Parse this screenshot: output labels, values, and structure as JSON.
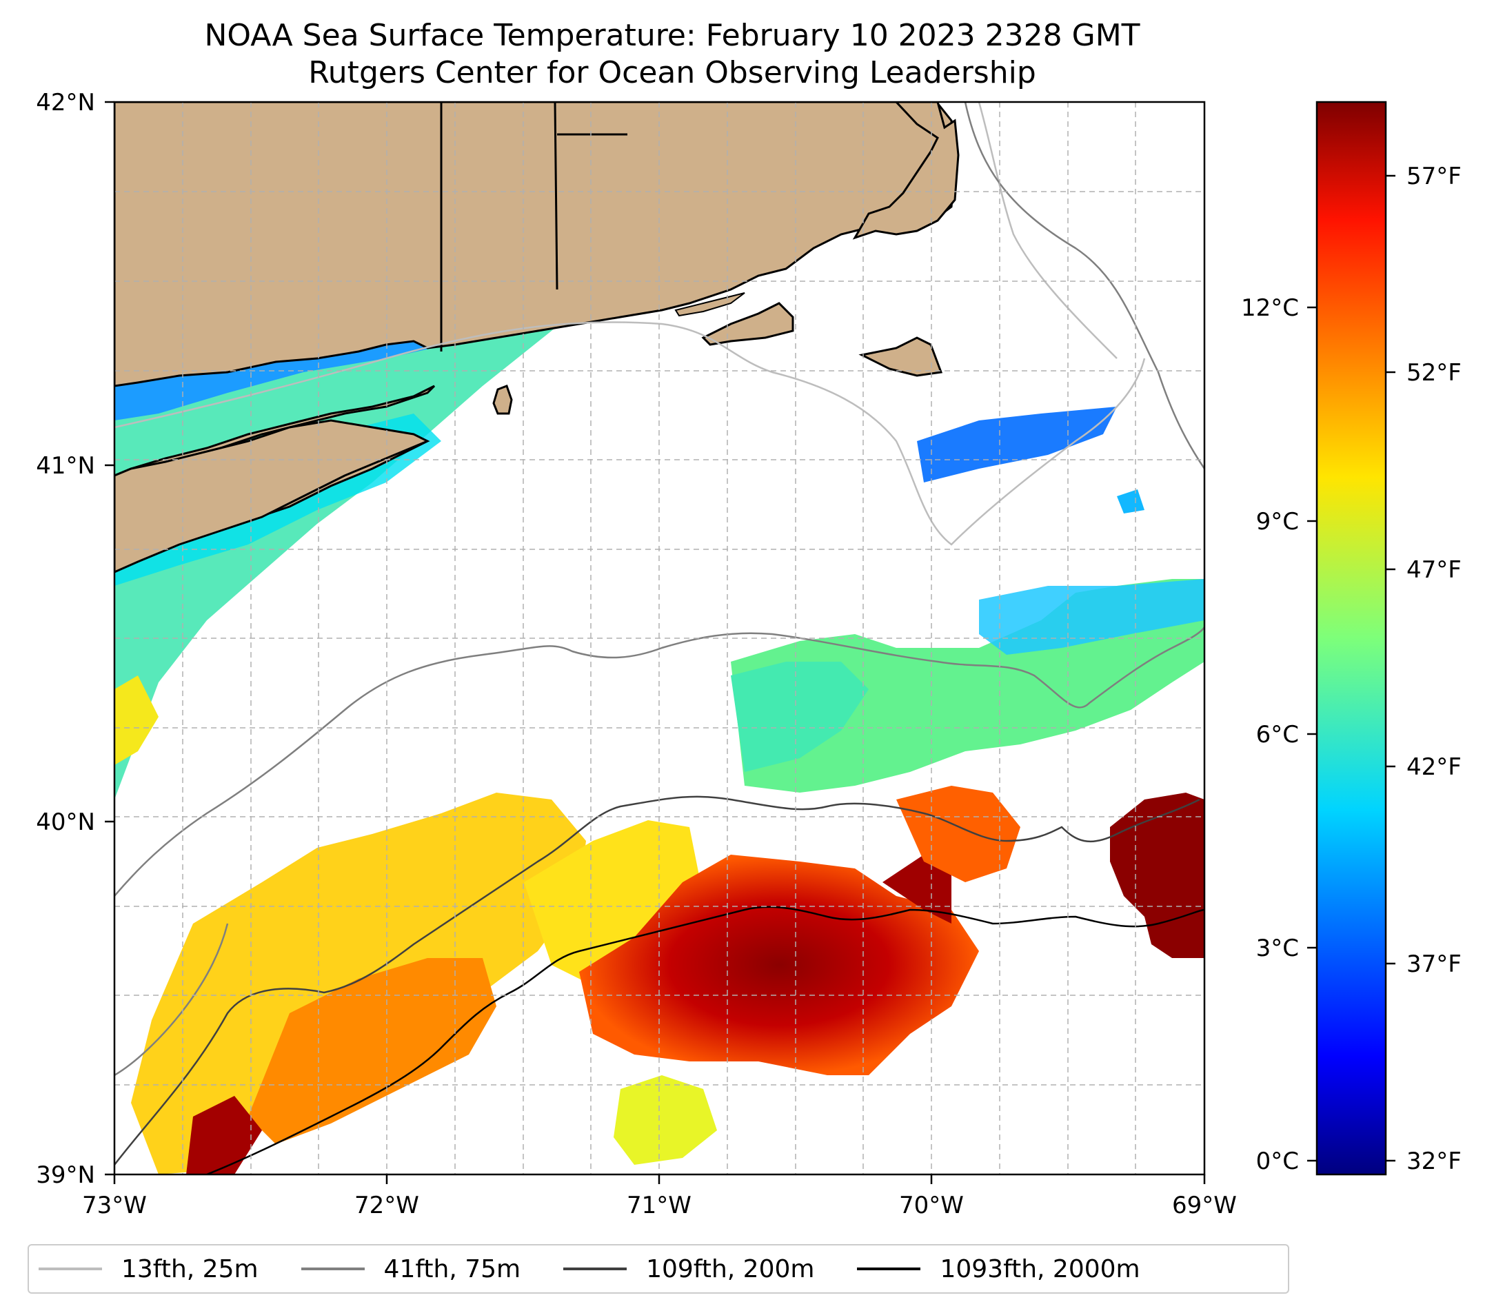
{
  "title": {
    "line1": "NOAA Sea Surface Temperature: February 10 2023 2328 GMT",
    "line2": "Rutgers Center for Ocean Observing Leadership"
  },
  "map": {
    "lat_ticks": [
      "42°N",
      "41°N",
      "40°N",
      "39°N"
    ],
    "lon_ticks": [
      "73°W",
      "72°W",
      "71°W",
      "70°W",
      "69°W"
    ],
    "extent": {
      "lon_min": -73,
      "lon_max": -69,
      "lat_min": 39,
      "lat_max": 42
    },
    "land_color": "#cfb08a",
    "no_data_color": "#ffffff"
  },
  "colorbar": {
    "celsius_ticks": [
      "12°C",
      "9°C",
      "6°C",
      "3°C",
      "0°C"
    ],
    "fahrenheit_ticks": [
      "57°F",
      "52°F",
      "47°F",
      "42°F",
      "37°F",
      "32°F"
    ],
    "celsius_values": [
      12,
      9,
      6,
      3,
      0
    ],
    "fahrenheit_values": [
      57,
      52,
      47,
      42,
      37,
      32
    ],
    "range_c": [
      0,
      14.5
    ],
    "colormap": "jet"
  },
  "legend": {
    "items": [
      {
        "label": "13fth, 25m",
        "color": "#bdbdbd"
      },
      {
        "label": "41fth, 75m",
        "color": "#808080"
      },
      {
        "label": "109fth, 200m",
        "color": "#404040"
      },
      {
        "label": "1093fth, 2000m",
        "color": "#000000"
      }
    ]
  }
}
